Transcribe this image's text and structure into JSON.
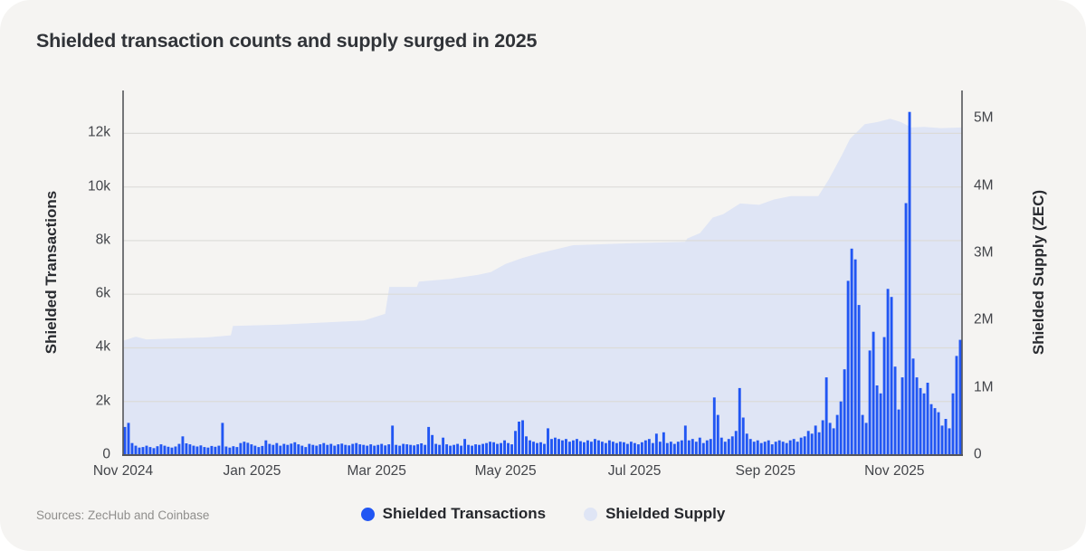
{
  "title": "Shielded transaction counts and supply surged in 2025",
  "source": "Sources: ZecHub and Coinbase",
  "colors": {
    "card_background": "#f5f4f2",
    "page_background": "#ffffff",
    "bar_blue": "#2156F3",
    "supply_fill": "#DFE5F5",
    "gridline": "#dcdbd8",
    "axis_line": "#54555a",
    "tick_text": "#43454a",
    "title_text": "#303338",
    "source_text": "#8f8e8c"
  },
  "legend": {
    "items": [
      {
        "label": "Shielded Transactions",
        "color": "#2156F3"
      },
      {
        "label": "Shielded Supply",
        "color": "#DFE5F5"
      }
    ]
  },
  "chart_data": {
    "type": "combo",
    "title": "Shielded transaction counts and supply surged in 2025",
    "x_start": "2024-11-01",
    "x_end": "2025-12-03",
    "x_tick_labels": [
      "Nov 2024",
      "Jan 2025",
      "Mar 2025",
      "May 2025",
      "Jul 2025",
      "Sep 2025",
      "Nov 2025"
    ],
    "grid": "horizontal-only",
    "legend_position": "bottom-center",
    "left_axis": {
      "title": "Shielded Transactions",
      "tick_labels": [
        "0",
        "2k",
        "4k",
        "6k",
        "8k",
        "10k",
        "12k"
      ],
      "tick_values": [
        0,
        2000,
        4000,
        6000,
        8000,
        10000,
        12000
      ],
      "max": 13600
    },
    "right_axis": {
      "title": "Shielded Supply (ZEC)",
      "tick_labels": [
        "0",
        "1M",
        "2M",
        "3M",
        "4M",
        "5M"
      ],
      "tick_values": [
        0,
        1000000,
        2000000,
        3000000,
        4000000,
        5000000
      ],
      "max": 5420000
    },
    "series": [
      {
        "name": "Shielded Transactions",
        "type": "bar",
        "axis": "left",
        "color": "#2156F3",
        "cadence": "evenly spaced from x_start to x_end",
        "values": [
          1050,
          1200,
          450,
          350,
          280,
          300,
          350,
          300,
          260,
          330,
          400,
          350,
          310,
          280,
          320,
          420,
          700,
          440,
          400,
          350,
          320,
          360,
          300,
          280,
          340,
          310,
          350,
          1200,
          320,
          280,
          330,
          300,
          450,
          500,
          460,
          400,
          350,
          300,
          340,
          550,
          420,
          380,
          450,
          350,
          420,
          380,
          430,
          480,
          400,
          350,
          300,
          420,
          380,
          350,
          400,
          450,
          380,
          420,
          350,
          400,
          430,
          380,
          360,
          420,
          450,
          400,
          380,
          350,
          400,
          350,
          380,
          420,
          360,
          400,
          1100,
          380,
          350,
          420,
          400,
          380,
          360,
          400,
          440,
          380,
          1050,
          750,
          420,
          380,
          650,
          400,
          350,
          380,
          420,
          350,
          600,
          380,
          350,
          400,
          380,
          420,
          450,
          500,
          480,
          420,
          450,
          550,
          450,
          400,
          900,
          1250,
          1300,
          700,
          550,
          500,
          450,
          480,
          420,
          1000,
          600,
          650,
          600,
          550,
          600,
          500,
          550,
          600,
          520,
          480,
          550,
          500,
          600,
          550,
          500,
          450,
          550,
          500,
          450,
          500,
          480,
          420,
          500,
          450,
          400,
          480,
          550,
          600,
          450,
          800,
          500,
          850,
          450,
          500,
          420,
          500,
          550,
          1100,
          550,
          600,
          500,
          650,
          450,
          550,
          600,
          2150,
          1500,
          650,
          500,
          600,
          700,
          900,
          2500,
          1400,
          800,
          600,
          500,
          550,
          450,
          500,
          550,
          400,
          500,
          550,
          500,
          450,
          550,
          600,
          500,
          650,
          700,
          900,
          800,
          1100,
          850,
          1300,
          2900,
          1200,
          1000,
          1500,
          2000,
          3200,
          6500,
          7700,
          7300,
          5600,
          1500,
          1200,
          3900,
          4600,
          2600,
          2300,
          4400,
          6200,
          5900,
          3300,
          1700,
          2900,
          9400,
          12800,
          3600,
          2900,
          2500,
          2300,
          2700,
          1900,
          1750,
          1600,
          1100,
          1350,
          1000,
          2300,
          3700,
          4300
        ]
      },
      {
        "name": "Shielded Supply",
        "type": "area",
        "axis": "right",
        "color": "#DFE5F5",
        "points": [
          {
            "date": "2024-11-01",
            "zec": 1700000
          },
          {
            "date": "2024-11-07",
            "zec": 1760000
          },
          {
            "date": "2024-11-12",
            "zec": 1720000
          },
          {
            "date": "2024-12-11",
            "zec": 1750000
          },
          {
            "date": "2024-12-22",
            "zec": 1780000
          },
          {
            "date": "2024-12-23",
            "zec": 1920000
          },
          {
            "date": "2025-01-15",
            "zec": 1940000
          },
          {
            "date": "2025-02-23",
            "zec": 2000000
          },
          {
            "date": "2025-03-05",
            "zec": 2100000
          },
          {
            "date": "2025-03-07",
            "zec": 2500000
          },
          {
            "date": "2025-03-20",
            "zec": 2500000
          },
          {
            "date": "2025-03-21",
            "zec": 2580000
          },
          {
            "date": "2025-04-05",
            "zec": 2620000
          },
          {
            "date": "2025-04-18",
            "zec": 2680000
          },
          {
            "date": "2025-04-24",
            "zec": 2720000
          },
          {
            "date": "2025-05-01",
            "zec": 2840000
          },
          {
            "date": "2025-05-09",
            "zec": 2930000
          },
          {
            "date": "2025-05-17",
            "zec": 3000000
          },
          {
            "date": "2025-06-02",
            "zec": 3120000
          },
          {
            "date": "2025-06-30",
            "zec": 3150000
          },
          {
            "date": "2025-07-25",
            "zec": 3170000
          },
          {
            "date": "2025-07-26",
            "zec": 3220000
          },
          {
            "date": "2025-08-01",
            "zec": 3300000
          },
          {
            "date": "2025-08-07",
            "zec": 3530000
          },
          {
            "date": "2025-08-12",
            "zec": 3580000
          },
          {
            "date": "2025-08-20",
            "zec": 3740000
          },
          {
            "date": "2025-08-29",
            "zec": 3720000
          },
          {
            "date": "2025-09-05",
            "zec": 3800000
          },
          {
            "date": "2025-09-13",
            "zec": 3850000
          },
          {
            "date": "2025-09-26",
            "zec": 3850000
          },
          {
            "date": "2025-10-01",
            "zec": 4100000
          },
          {
            "date": "2025-10-07",
            "zec": 4450000
          },
          {
            "date": "2025-10-11",
            "zec": 4700000
          },
          {
            "date": "2025-10-18",
            "zec": 4920000
          },
          {
            "date": "2025-10-24",
            "zec": 4950000
          },
          {
            "date": "2025-10-30",
            "zec": 5000000
          },
          {
            "date": "2025-11-04",
            "zec": 4950000
          },
          {
            "date": "2025-11-09",
            "zec": 4870000
          },
          {
            "date": "2025-11-15",
            "zec": 4880000
          },
          {
            "date": "2025-11-23",
            "zec": 4860000
          },
          {
            "date": "2025-12-03",
            "zec": 4870000
          }
        ]
      }
    ]
  }
}
